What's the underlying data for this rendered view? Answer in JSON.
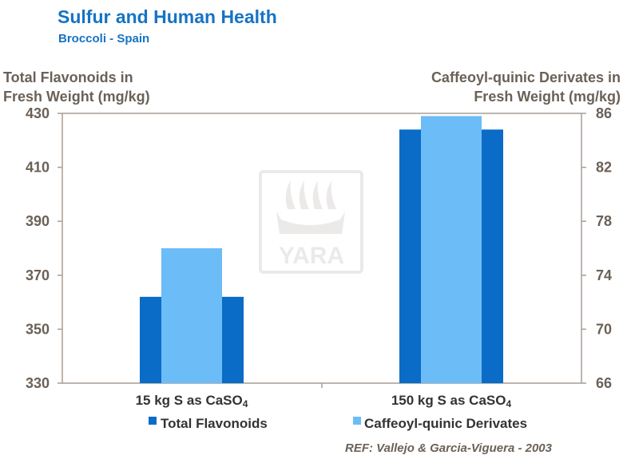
{
  "header": {
    "title": "Sulfur and Human Health",
    "subtitle": "Broccoli - Spain"
  },
  "reference": "REF: Vallejo & Garcia-Viguera - 2003",
  "watermark": {
    "text": "YARA"
  },
  "colors": {
    "series1": "#0a6cc6",
    "series2": "#6cbcf7",
    "axis": "#8a8178",
    "text": "#6b6157"
  },
  "chart_data": {
    "type": "bar",
    "title": "Sulfur and Human Health",
    "subtitle": "Broccoli - Spain",
    "categories": [
      {
        "main": "15 kg S as CaSO",
        "sub": "4"
      },
      {
        "main": "150 kg S as CaSO",
        "sub": "4"
      }
    ],
    "y_left": {
      "label_line1": "Total Flavonoids in",
      "label_line2": "Fresh Weight (mg/kg)",
      "ylim": [
        330,
        430
      ],
      "ticks": [
        "330",
        "350",
        "370",
        "390",
        "410",
        "430"
      ]
    },
    "y_right": {
      "label_line1": "Caffeoyl-quinic Derivates in",
      "label_line2": "Fresh Weight (mg/kg)",
      "ylim": [
        66,
        86
      ],
      "ticks": [
        "66",
        "70",
        "74",
        "78",
        "82",
        "86"
      ]
    },
    "series": [
      {
        "name": "Total Flavonoids",
        "axis": "left",
        "values": [
          362,
          424
        ]
      },
      {
        "name": "Caffeoyl-quinic Derivates",
        "axis": "right",
        "values": [
          76,
          85.8
        ]
      }
    ],
    "legend": [
      "Total Flavonoids",
      "Caffeoyl-quinic Derivates"
    ],
    "legend_position": "bottom"
  }
}
